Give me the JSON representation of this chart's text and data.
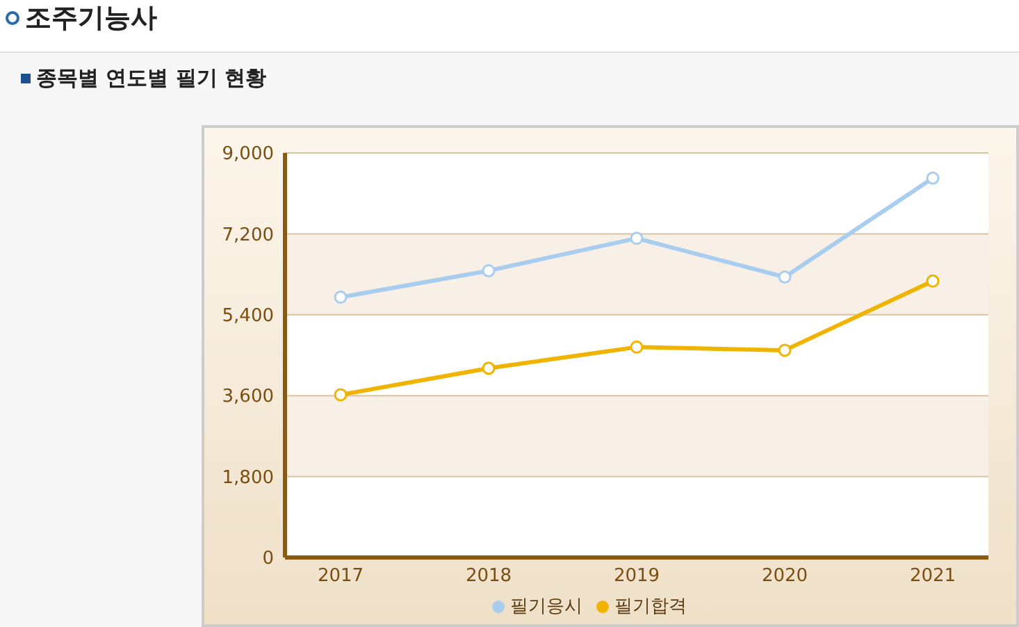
{
  "chart_data": {
    "type": "line",
    "title": "조주기능사",
    "subtitle": "종목별 연도별 필기 현황",
    "categories": [
      "2017",
      "2018",
      "2019",
      "2020",
      "2021"
    ],
    "series": [
      {
        "name": "필기응시",
        "color": "#a9cdef",
        "values": [
          5790,
          6380,
          7100,
          6240,
          8440
        ]
      },
      {
        "name": "필기합격",
        "color": "#f0b400",
        "values": [
          3620,
          4210,
          4680,
          4610,
          6150
        ]
      }
    ],
    "ylim": [
      0,
      9000
    ],
    "yticks": [
      {
        "value": 0,
        "label": "0"
      },
      {
        "value": 1800,
        "label": "1,800"
      },
      {
        "value": 3600,
        "label": "3,600"
      },
      {
        "value": 5400,
        "label": "5,400"
      },
      {
        "value": 7200,
        "label": "7,200"
      },
      {
        "value": 9000,
        "label": "9,000"
      }
    ],
    "grid": "y",
    "legend": "bottom",
    "marker": "circle",
    "line_style": "solid"
  }
}
